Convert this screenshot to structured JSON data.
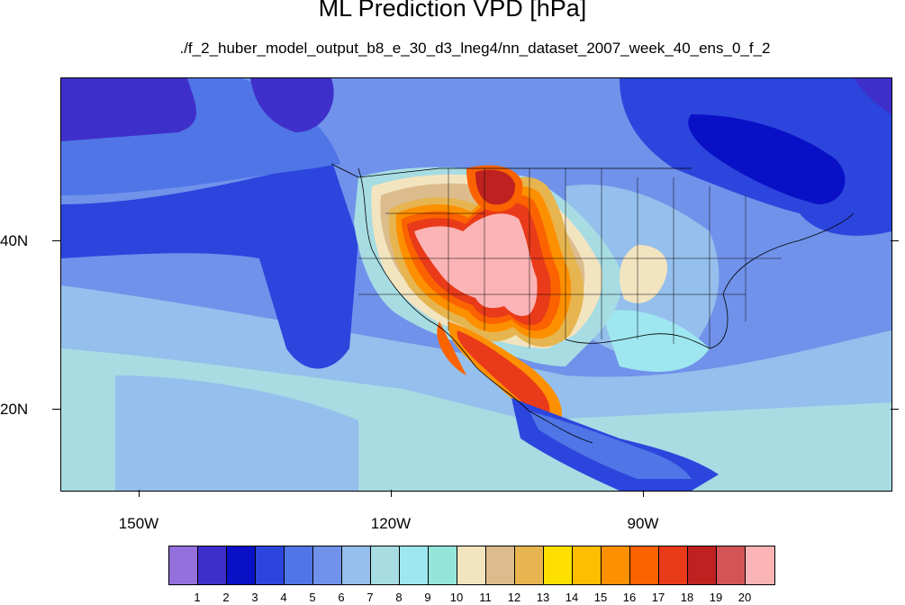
{
  "title": "ML Prediction VPD [hPa]",
  "subtitle": "./f_2_huber_model_output_b8_e_30_d3_lneg4/nn_dataset_2007_week_40_ens_0_f_2",
  "lon_labels": [
    "150W",
    "120W",
    "90W"
  ],
  "lat_labels": [
    "40N",
    "20N"
  ],
  "colorbar": {
    "labels": [
      "1",
      "2",
      "3",
      "4",
      "5",
      "6",
      "7",
      "8",
      "9",
      "10",
      "11",
      "12",
      "13",
      "14",
      "15",
      "16",
      "17",
      "18",
      "19",
      "20"
    ],
    "colors": [
      "#9370db",
      "#3f2fca",
      "#0a10c6",
      "#2c45dd",
      "#4f75e6",
      "#7092ea",
      "#95bfec",
      "#a7dce3",
      "#9ee6f0",
      "#94e6d9",
      "#f3e4c0",
      "#dcbc8c",
      "#e6b550",
      "#fde000",
      "#fdbd00",
      "#fd9000",
      "#fb6200",
      "#e93a1a",
      "#bd2120",
      "#d25457",
      "#fbb4b5"
    ]
  },
  "map_colors": {
    "ocean_base": "#95bfec",
    "cool_light": "#a7dce3",
    "cool_mid": "#7092ea",
    "cool_dark": "#4f75e6",
    "deep": "#2c45dd",
    "deepest": "#0a10c6",
    "violet": "#3f2fca",
    "tan": "#f3e4c0",
    "sand": "#dcbc8c",
    "gold": "#e6b550",
    "orange": "#fd9000",
    "redorange": "#fb6200",
    "red": "#e93a1a",
    "darkred": "#bd2120",
    "pink": "#fbb4b5"
  }
}
